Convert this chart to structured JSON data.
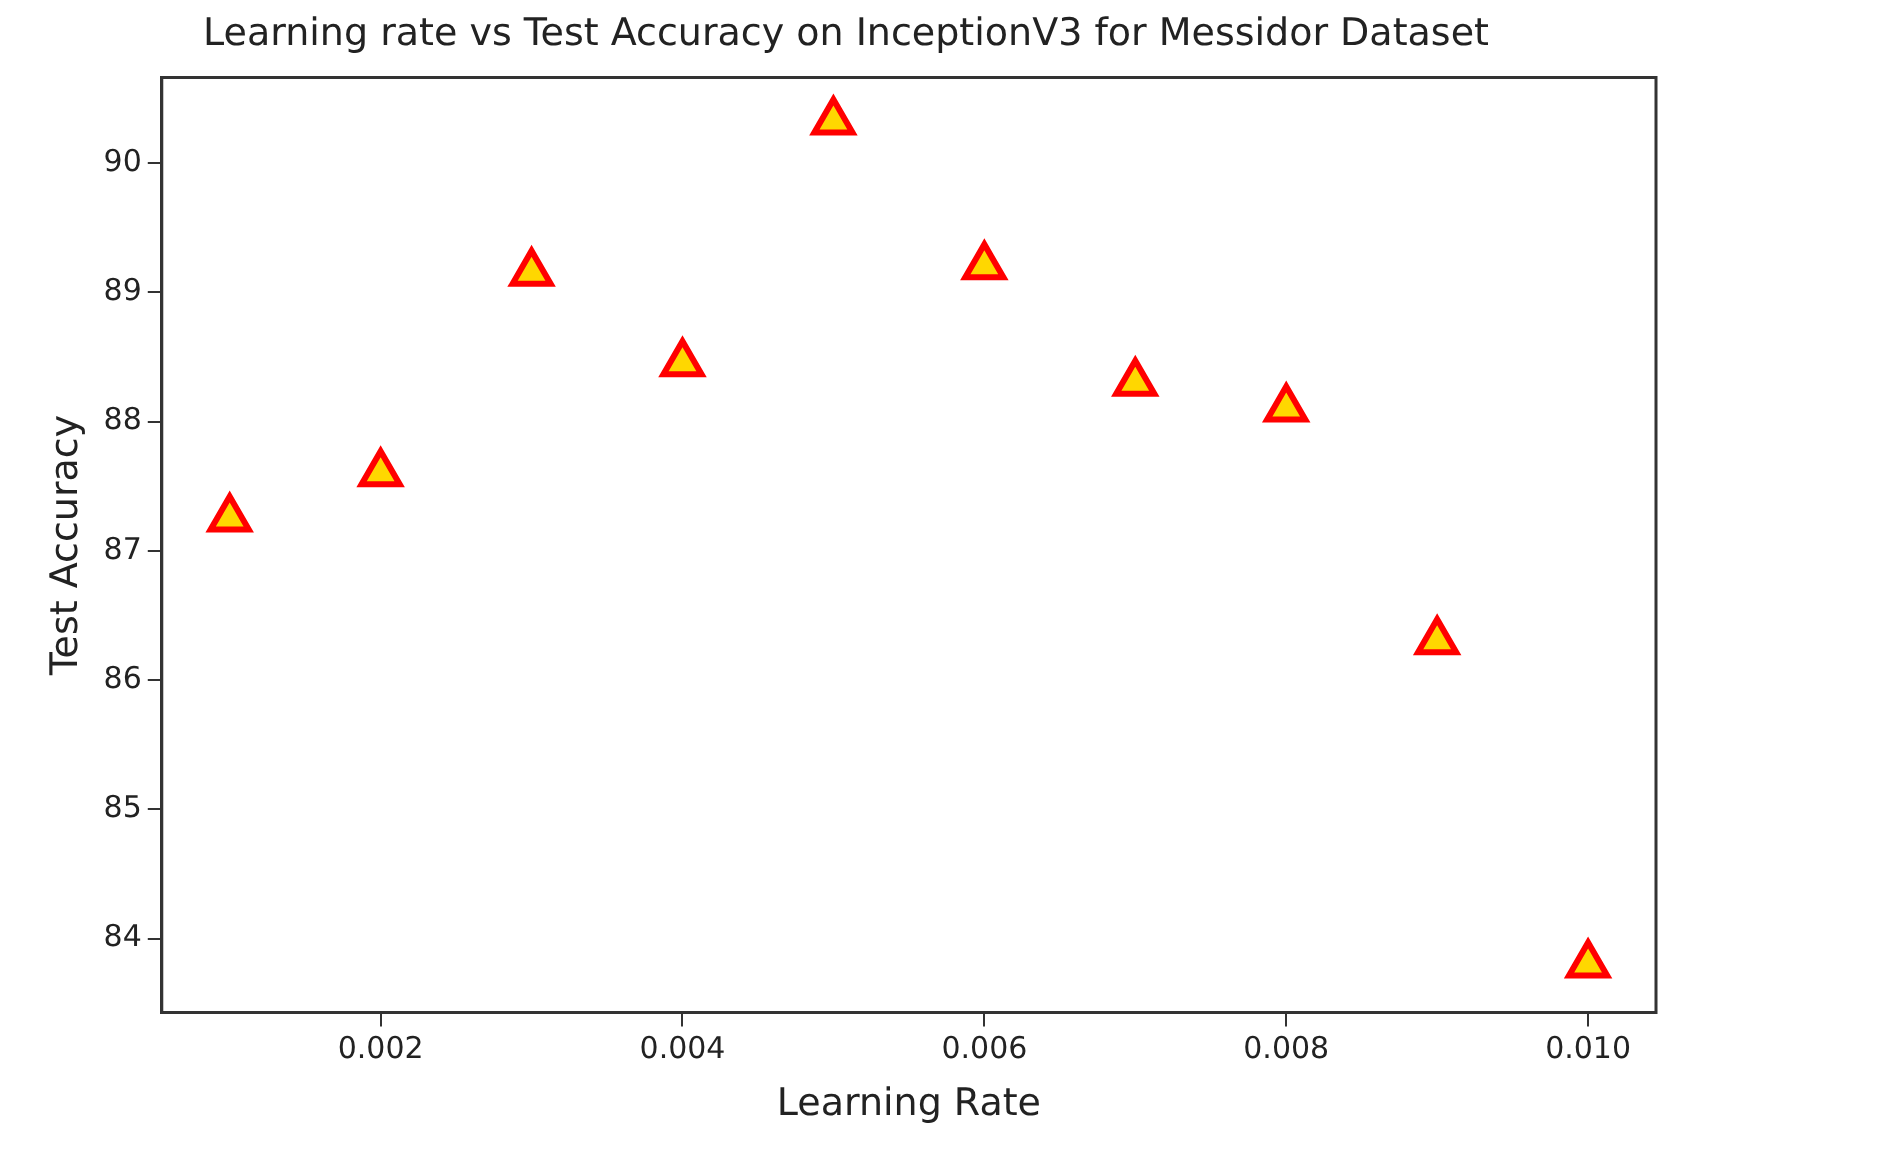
{
  "chart_data": {
    "type": "scatter",
    "title": "Learning rate vs Test Accuracy on InceptionV3 for Messidor Dataset",
    "xlabel": "Learning Rate",
    "ylabel": "Test Accuracy",
    "x": [
      0.001,
      0.002,
      0.003,
      0.004,
      0.005,
      0.006,
      0.007,
      0.008,
      0.009,
      0.01
    ],
    "series": [
      {
        "color": "#ff0000",
        "values": [
          87.25,
          87.6,
          89.15,
          88.45,
          90.32,
          89.2,
          88.3,
          88.1,
          86.3,
          83.8
        ]
      }
    ],
    "marker": "triangle",
    "grid": false,
    "legend": false,
    "xlim": [
      0.00055,
      0.01045
    ],
    "xticks": [
      0.002,
      0.004,
      0.006,
      0.008,
      {
        "value": 0.01,
        "label": "0.010"
      }
    ],
    "ylim": [
      83.43,
      90.66
    ],
    "yticks": [
      84,
      85,
      86,
      87,
      88,
      89,
      90
    ]
  }
}
